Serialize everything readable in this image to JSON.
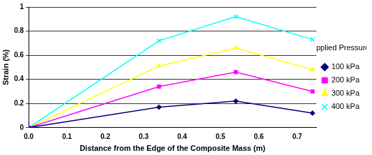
{
  "chart_data": {
    "type": "line",
    "x_label": "Distance from the Edge of the Composite Mass (m)",
    "y_label": "Strain (%)",
    "legend_title": "Applied Pressure:",
    "legend": "right",
    "grid": true,
    "x": [
      0,
      0.34,
      0.54,
      0.74
    ],
    "xlim": [
      0,
      0.75
    ],
    "xticks": [
      {
        "value": 0,
        "label": "0.0"
      },
      {
        "value": 0.1,
        "label": "0.1"
      },
      {
        "value": 0.2,
        "label": "0.2"
      },
      {
        "value": 0.3,
        "label": "0.3"
      },
      {
        "value": 0.4,
        "label": "0.4"
      },
      {
        "value": 0.5,
        "label": "0.5"
      },
      {
        "value": 0.6,
        "label": "0.6"
      },
      {
        "value": 0.7,
        "label": "0.7"
      }
    ],
    "ylim": [
      0,
      1
    ],
    "yticks": [
      0,
      0.2,
      0.4,
      0.6,
      0.8,
      1
    ],
    "series": [
      {
        "name": "100 kPa",
        "color": "#000080",
        "marker": "diamond",
        "values": [
          0,
          0.17,
          0.22,
          0.12
        ]
      },
      {
        "name": "200 kPa",
        "color": "#ff00ff",
        "marker": "square",
        "values": [
          0,
          0.34,
          0.46,
          0.3
        ]
      },
      {
        "name": "300 kPa",
        "color": "#ffff00",
        "marker": "triangle",
        "values": [
          0,
          0.51,
          0.66,
          0.48
        ]
      },
      {
        "name": "400 kPa",
        "color": "#00ffff",
        "marker": "x",
        "values": [
          0,
          0.72,
          0.92,
          0.73
        ]
      }
    ]
  }
}
